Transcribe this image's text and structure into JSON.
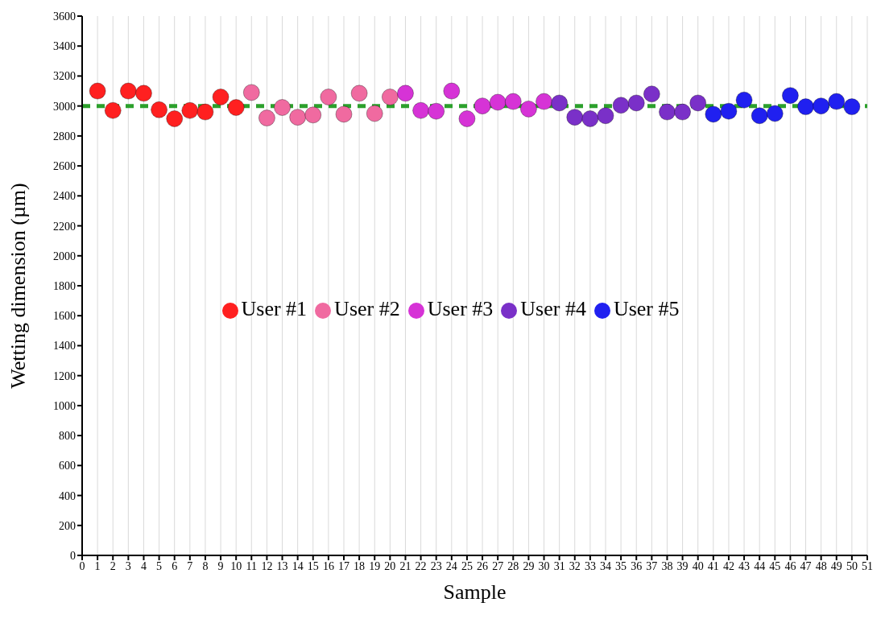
{
  "chart_data": {
    "type": "scatter",
    "xlabel": "Sample",
    "ylabel": "Wetting dimension (µm)",
    "xlim": [
      0,
      51
    ],
    "xticks": [
      0,
      1,
      2,
      3,
      4,
      5,
      6,
      7,
      8,
      9,
      10,
      11,
      12,
      13,
      14,
      15,
      16,
      17,
      18,
      19,
      20,
      21,
      22,
      23,
      24,
      25,
      26,
      27,
      28,
      29,
      30,
      31,
      32,
      33,
      34,
      35,
      36,
      37,
      38,
      39,
      40,
      41,
      42,
      43,
      44,
      45,
      46,
      47,
      48,
      49,
      50,
      51
    ],
    "ylim": [
      0,
      3600
    ],
    "yticks": [
      0,
      200,
      400,
      600,
      800,
      1000,
      1200,
      1400,
      1600,
      1800,
      2000,
      2200,
      2400,
      2600,
      2800,
      3000,
      3200,
      3400,
      3600
    ],
    "grid": "x",
    "legend": "center",
    "marker": "circle",
    "ref_lines": [
      {
        "axis": "y",
        "value": 3000,
        "color": "#2ca02c",
        "line_style": "dashed"
      }
    ],
    "series": [
      {
        "name": "User #1",
        "color": "#ff2020",
        "x": [
          1,
          2,
          3,
          4,
          5,
          6,
          7,
          8,
          9,
          10
        ],
        "values": [
          3100,
          2970,
          3100,
          3085,
          2975,
          2915,
          2970,
          2960,
          3060,
          2990
        ]
      },
      {
        "name": "User #2",
        "color": "#f06aa0",
        "x": [
          11,
          12,
          13,
          14,
          15,
          16,
          17,
          18,
          19,
          20
        ],
        "values": [
          3090,
          2920,
          2990,
          2925,
          2940,
          3060,
          2945,
          3085,
          2950,
          3060
        ]
      },
      {
        "name": "User #3",
        "color": "#d633d6",
        "x": [
          21,
          22,
          23,
          24,
          25,
          26,
          27,
          28,
          29,
          30
        ],
        "values": [
          3085,
          2970,
          2965,
          3100,
          2915,
          3000,
          3025,
          3030,
          2980,
          3030
        ]
      },
      {
        "name": "User #4",
        "color": "#7a30c8",
        "x": [
          31,
          32,
          33,
          34,
          35,
          36,
          37,
          38,
          39,
          40
        ],
        "values": [
          3020,
          2925,
          2915,
          2935,
          3005,
          3020,
          3080,
          2960,
          2960,
          3020
        ]
      },
      {
        "name": "User #5",
        "color": "#2020f0",
        "x": [
          41,
          42,
          43,
          44,
          45,
          46,
          47,
          48,
          49,
          50
        ],
        "values": [
          2945,
          2965,
          3040,
          2935,
          2950,
          3070,
          2995,
          3000,
          3030,
          2995
        ]
      }
    ]
  }
}
